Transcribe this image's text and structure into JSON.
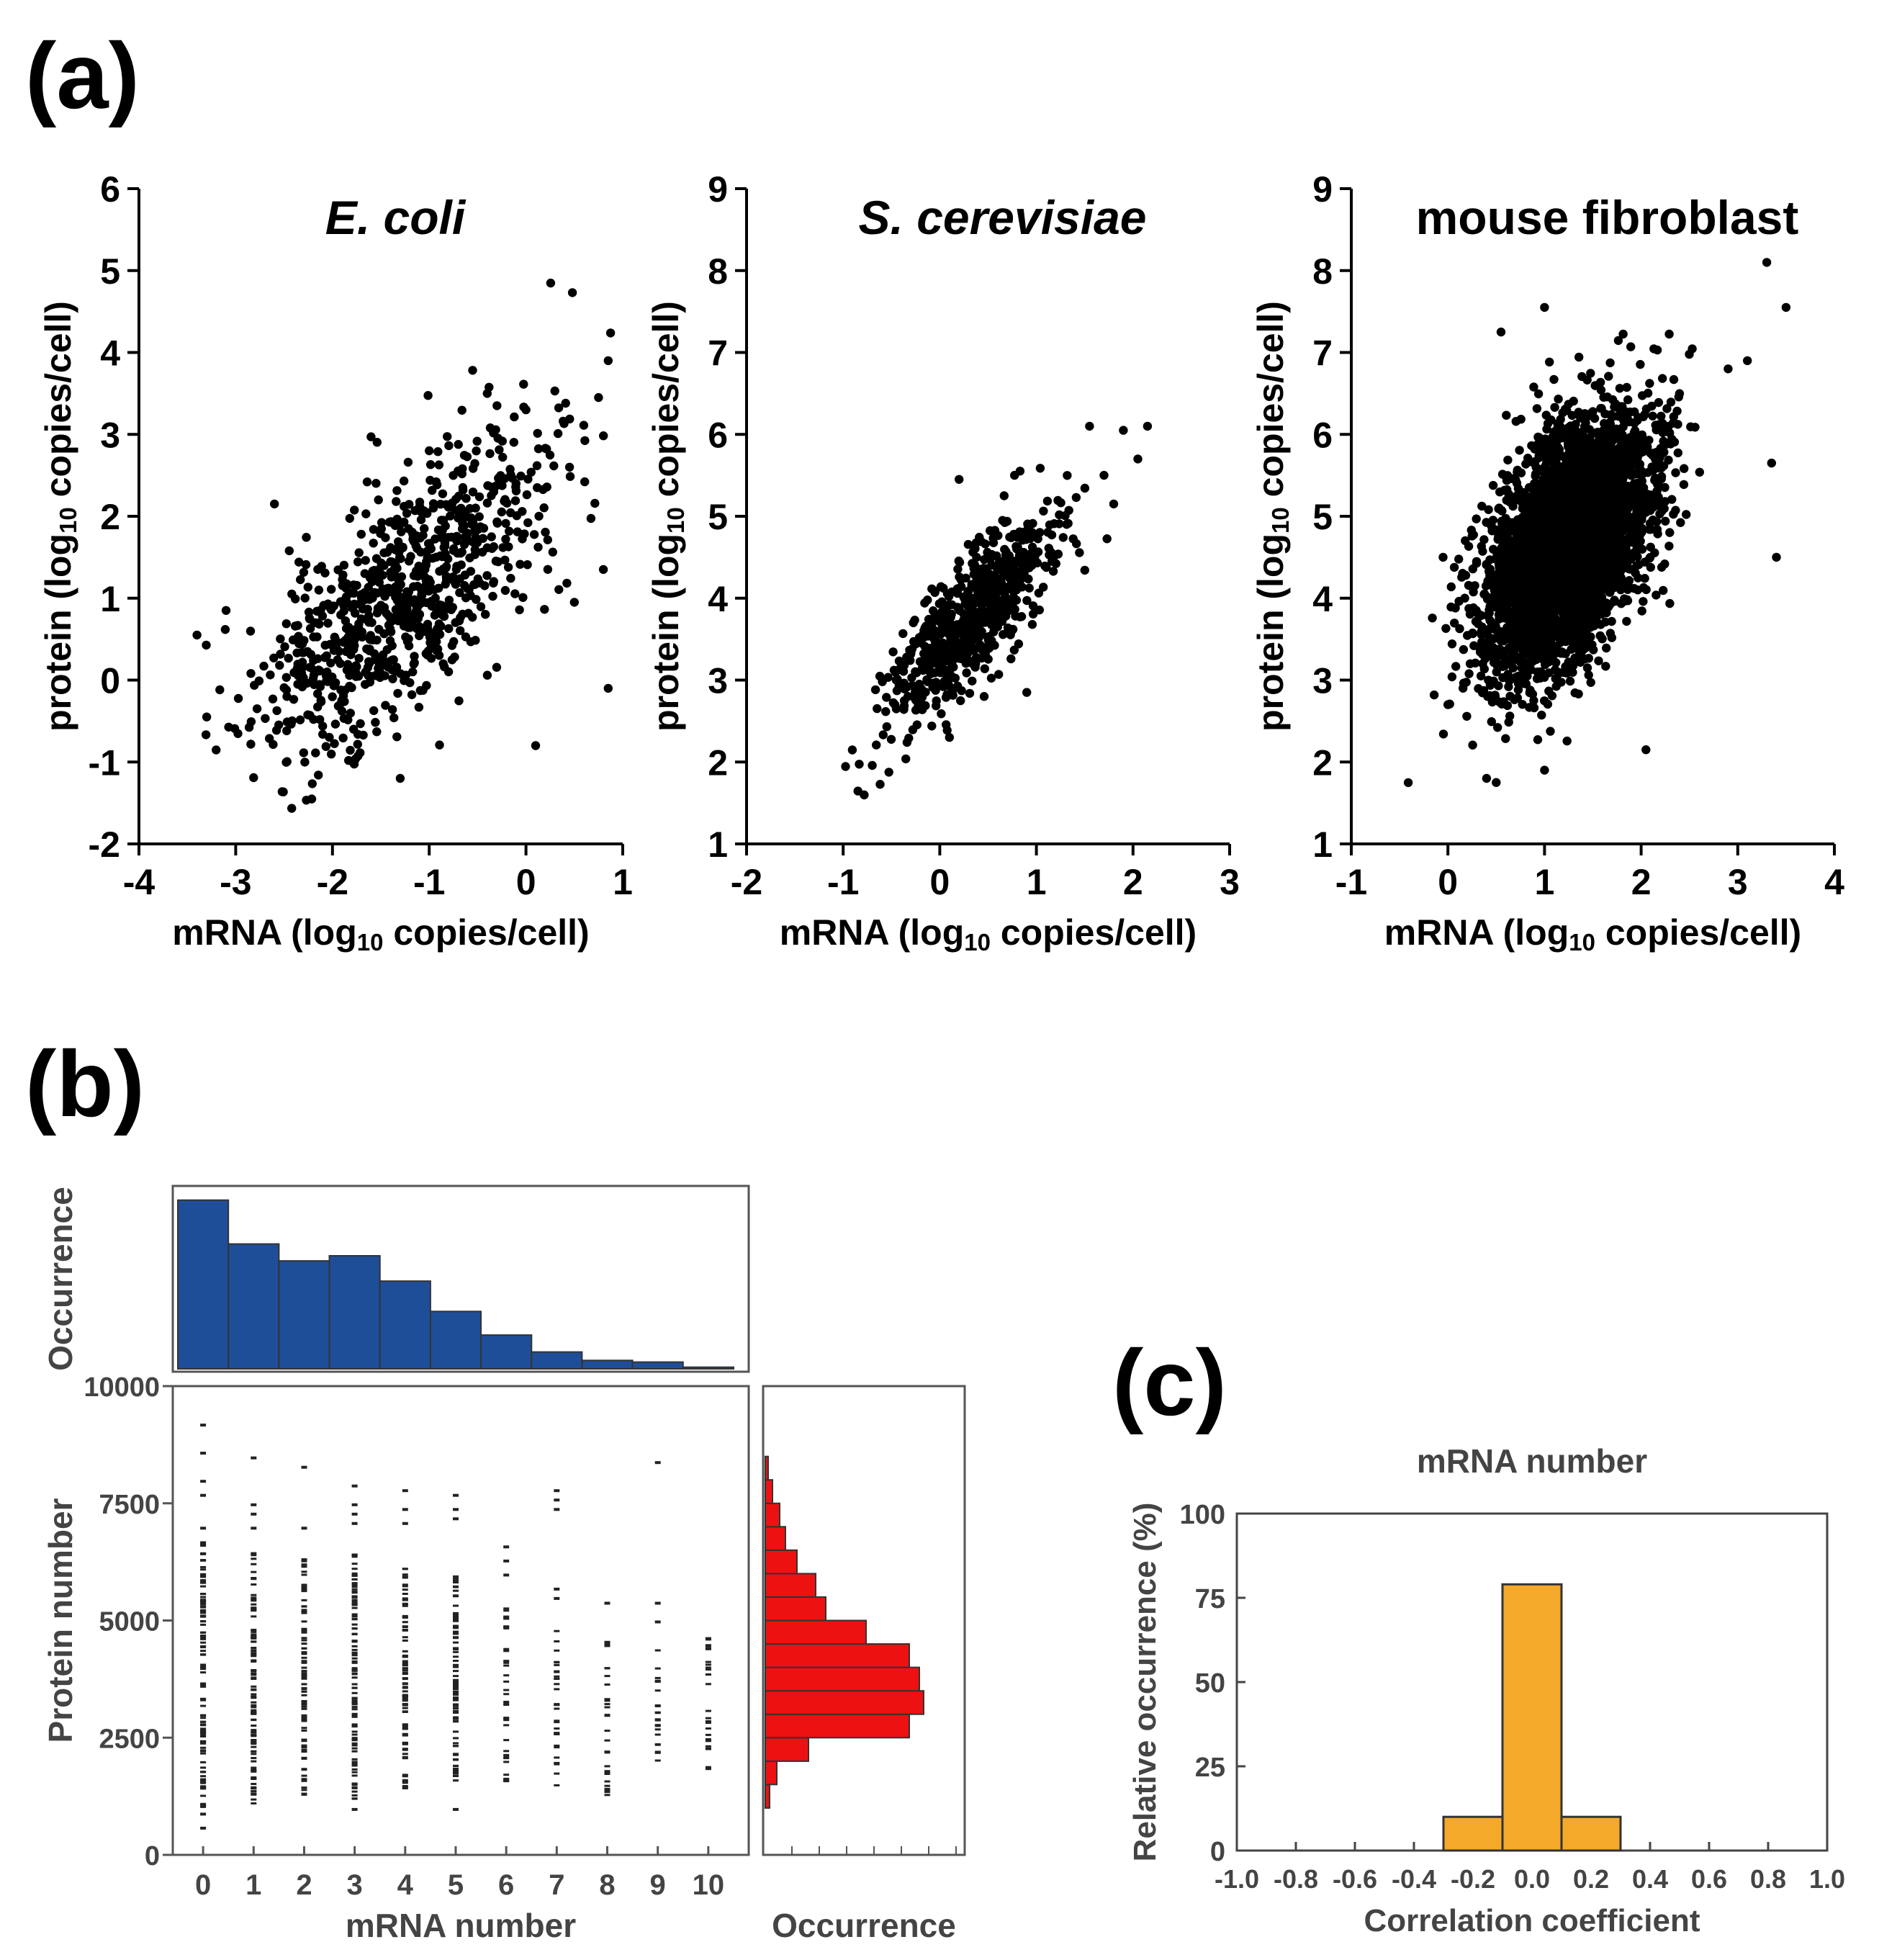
{
  "labels": {
    "a": "(a)",
    "b": "(b)",
    "c": "(c)"
  },
  "colors": {
    "points": "#000000",
    "hist_top": "#1f4e99",
    "hist_right": "#ee1111",
    "hist_c": "#f5a92b"
  },
  "chart_data": [
    {
      "id": "ecoli",
      "type": "scatter",
      "title": "E. coli",
      "title_italic": true,
      "xlabel": {
        "pre": "mRNA (log",
        "sub": "10",
        "post": " copies/cell)"
      },
      "ylabel": {
        "pre": "protein (log",
        "sub": "10",
        "post": " copies/cell)"
      },
      "xlim": [
        -4,
        1
      ],
      "ylim": [
        -2,
        6
      ],
      "xticks": [
        -4,
        -3,
        -2,
        -1,
        0,
        1
      ],
      "yticks": [
        -2,
        -1,
        0,
        1,
        2,
        3,
        4,
        5,
        6
      ],
      "cloud": {
        "n": 850,
        "x_mean": -1.3,
        "x_sd": 0.75,
        "slope": 0.9,
        "intercept": 2.2,
        "y_sd": 0.7,
        "seed": 11
      },
      "points": [
        [
          -3.4,
          0.55
        ],
        [
          -3.1,
          0.85
        ],
        [
          -3.3,
          -0.45
        ],
        [
          -2.6,
          2.15
        ],
        [
          -1.3,
          -1.2
        ],
        [
          0.85,
          3.9
        ],
        [
          0.75,
          3.45
        ],
        [
          0.8,
          1.35
        ],
        [
          0.85,
          -0.1
        ],
        [
          0.1,
          -0.8
        ],
        [
          0.5,
          0.95
        ],
        [
          0.45,
          2.6
        ],
        [
          -0.4,
          3.5
        ],
        [
          -0.3,
          3.35
        ],
        [
          -1.0,
          2.8
        ],
        [
          0.0,
          3.3
        ]
      ]
    },
    {
      "id": "yeast",
      "type": "scatter",
      "title": "S. cerevisiae",
      "title_italic": true,
      "xlabel": {
        "pre": "mRNA (log",
        "sub": "10",
        "post": " copies/cell)"
      },
      "ylabel": {
        "pre": "protein (log",
        "sub": "10",
        "post": " copies/cell)"
      },
      "xlim": [
        -2,
        3
      ],
      "ylim": [
        1,
        9
      ],
      "xticks": [
        -2,
        -1,
        0,
        1,
        2,
        3
      ],
      "yticks": [
        1,
        2,
        3,
        4,
        5,
        6,
        7,
        8,
        9
      ],
      "cloud": {
        "n": 650,
        "x_mean": 0.3,
        "x_sd": 0.42,
        "slope": 1.15,
        "intercept": 3.35,
        "y_sd": 0.38,
        "seed": 23
      },
      "points": [
        [
          2.15,
          6.1
        ],
        [
          1.9,
          6.05
        ],
        [
          1.55,
          6.1
        ],
        [
          2.05,
          5.7
        ],
        [
          -0.45,
          3.0
        ],
        [
          0.1,
          2.3
        ],
        [
          0.9,
          2.85
        ],
        [
          0.2,
          5.45
        ],
        [
          1.8,
          5.15
        ],
        [
          1.7,
          5.5
        ]
      ]
    },
    {
      "id": "mouse",
      "type": "scatter",
      "title": "mouse fibroblast",
      "title_italic": false,
      "xlabel": {
        "pre": "mRNA (log",
        "sub": "10",
        "post": " copies/cell)"
      },
      "ylabel": {
        "pre": "protein (log",
        "sub": "10",
        "post": " copies/cell)"
      },
      "xlim": [
        -1,
        4
      ],
      "ylim": [
        1,
        9
      ],
      "xticks": [
        -1,
        0,
        1,
        2,
        3,
        4
      ],
      "yticks": [
        1,
        2,
        3,
        4,
        5,
        6,
        7,
        8,
        9
      ],
      "cloud": {
        "n": 4500,
        "x_mean": 1.25,
        "x_sd": 0.42,
        "slope": 0.95,
        "intercept": 3.45,
        "y_sd": 0.65,
        "seed": 37
      },
      "points": [
        [
          3.3,
          8.1
        ],
        [
          3.5,
          7.55
        ],
        [
          1.0,
          7.55
        ],
        [
          0.55,
          7.25
        ],
        [
          3.35,
          5.65
        ],
        [
          3.4,
          4.5
        ],
        [
          2.05,
          2.15
        ],
        [
          1.0,
          1.9
        ],
        [
          0.5,
          1.75
        ],
        [
          0.4,
          1.8
        ],
        [
          0.0,
          2.7
        ],
        [
          2.9,
          6.8
        ],
        [
          3.1,
          6.9
        ],
        [
          -0.05,
          4.5
        ]
      ]
    },
    {
      "id": "b-scatter",
      "type": "scatter",
      "xlabel": "mRNA number",
      "ylabel": "Protein number",
      "xlim": [
        -0.6,
        10.8
      ],
      "ylim": [
        0,
        10000
      ],
      "xticks": [
        0,
        1,
        2,
        3,
        4,
        5,
        6,
        7,
        8,
        9,
        10
      ],
      "yticks": [
        0,
        2500,
        5000,
        7500,
        10000
      ],
      "columns": [
        {
          "x": 0,
          "min": 1000,
          "max": 6700,
          "outliers": [
            9200,
            8600,
            8000,
            7700,
            7000,
            900,
            600
          ]
        },
        {
          "x": 1,
          "min": 1100,
          "max": 6500,
          "outliers": [
            8500,
            7500,
            7300,
            7000
          ]
        },
        {
          "x": 2,
          "min": 1300,
          "max": 6400,
          "outliers": [
            8300,
            7000
          ]
        },
        {
          "x": 3,
          "min": 1200,
          "max": 6600,
          "outliers": [
            7900,
            7500,
            7300,
            7100,
            1000
          ]
        },
        {
          "x": 4,
          "min": 1400,
          "max": 6200,
          "outliers": [
            7800,
            7400,
            7100
          ]
        },
        {
          "x": 5,
          "min": 1500,
          "max": 6000,
          "outliers": [
            7700,
            7400,
            7200,
            1000
          ]
        },
        {
          "x": 6,
          "min": 1500,
          "max": 5300,
          "outliers": [
            6600,
            6300,
            6000
          ]
        },
        {
          "x": 7,
          "min": 1500,
          "max": 4900,
          "outliers": [
            7800,
            7600,
            7400,
            5700,
            5500
          ]
        },
        {
          "x": 8,
          "min": 1300,
          "max": 4700,
          "outliers": [
            5400
          ]
        },
        {
          "x": 9,
          "min": 2000,
          "max": 4400,
          "outliers": [
            8400,
            5400,
            5000
          ]
        },
        {
          "x": 10,
          "min": 1800,
          "max": 4700,
          "outliers": []
        }
      ]
    },
    {
      "id": "b-top-hist",
      "type": "bar",
      "ylabel": "Occurrence",
      "categories": [
        0,
        1,
        2,
        3,
        4,
        5,
        6,
        7,
        8,
        9,
        10
      ],
      "values": [
        100,
        74,
        64,
        67,
        52,
        34,
        20,
        10,
        5,
        4,
        1
      ],
      "ylim": [
        0,
        105
      ]
    },
    {
      "id": "b-right-hist",
      "type": "bar",
      "orientation": "horizontal",
      "xlabel": "Occurrence",
      "bin_width": 500,
      "bins": [
        [
          1000,
          3
        ],
        [
          1500,
          8
        ],
        [
          2000,
          30
        ],
        [
          2500,
          100
        ],
        [
          3000,
          110
        ],
        [
          3500,
          107
        ],
        [
          4000,
          100
        ],
        [
          4500,
          70
        ],
        [
          5000,
          42
        ],
        [
          5500,
          35
        ],
        [
          6000,
          22
        ],
        [
          6500,
          14
        ],
        [
          7000,
          10
        ],
        [
          7500,
          5
        ],
        [
          8000,
          2
        ]
      ],
      "xlim": [
        0,
        130
      ]
    },
    {
      "id": "c",
      "type": "bar",
      "title": "mRNA number",
      "xlabel": "Correlation coefficient",
      "ylabel": "Relative occurrence (%)",
      "xlim": [
        -1.0,
        1.0
      ],
      "ylim": [
        0,
        100
      ],
      "xticks": [
        "-1.0",
        "-0.8",
        "-0.6",
        "-0.4",
        "-0.2",
        "0.0",
        "0.2",
        "0.4",
        "0.6",
        "0.8",
        "1.0"
      ],
      "yticks": [
        0,
        25,
        50,
        75,
        100
      ],
      "bars": [
        {
          "x0": -0.3,
          "x1": -0.1,
          "value": 10
        },
        {
          "x0": -0.1,
          "x1": 0.1,
          "value": 79
        },
        {
          "x0": 0.1,
          "x1": 0.3,
          "value": 10
        }
      ]
    }
  ]
}
